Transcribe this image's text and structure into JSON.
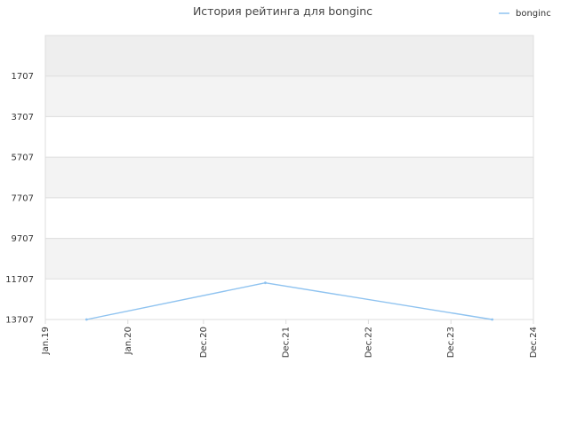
{
  "chart_data": {
    "type": "line",
    "title": "История рейтинга для bonginc",
    "legend": {
      "placement": "top-right",
      "entries": [
        "bonginc"
      ]
    },
    "x_ticks": [
      "Jan.19",
      "Jan.20",
      "Dec.20",
      "Dec.21",
      "Dec.22",
      "Dec.23",
      "Dec.24"
    ],
    "x_tick_values": [
      "2019-01",
      "2020-01",
      "2020-12",
      "2021-12",
      "2022-12",
      "2023-12",
      "2024-12"
    ],
    "xlim": [
      "2019-01",
      "2024-12"
    ],
    "y_ticks": [
      1707,
      3707,
      5707,
      7707,
      9707,
      11707,
      13707
    ],
    "ylim": [
      13707,
      -293
    ],
    "y_inverted": true,
    "grid": {
      "horizontal": true,
      "vertical": false,
      "alternating_bands": true
    },
    "colors": {
      "line": "#8fc3f0",
      "band": "#f3f3f3",
      "top_band": "#eeeeee",
      "grid": "#dddddd",
      "border": "#dddddd"
    },
    "series": [
      {
        "name": "bonginc",
        "points": [
          {
            "x": "2019-07",
            "y": 13707
          },
          {
            "x": "2021-09",
            "y": 11900
          },
          {
            "x": "2024-06",
            "y": 13707
          }
        ]
      }
    ]
  }
}
